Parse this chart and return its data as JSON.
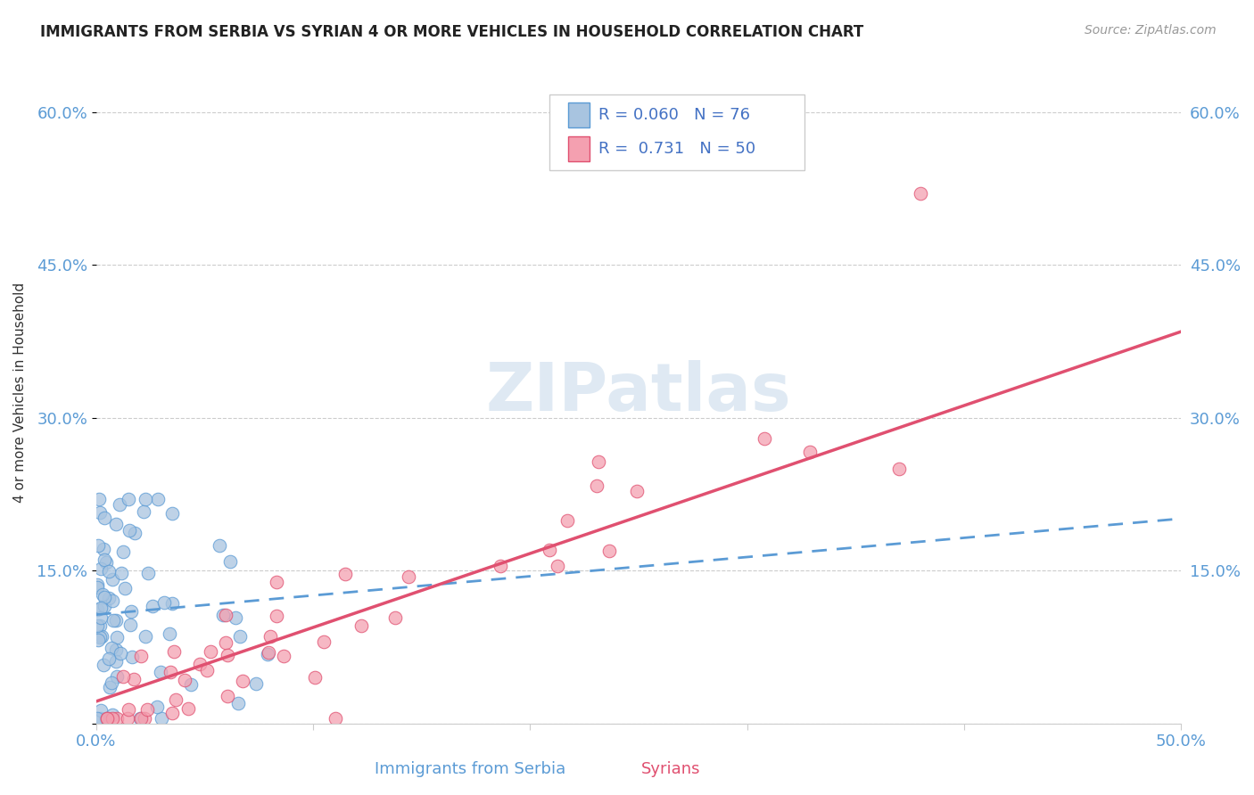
{
  "title": "IMMIGRANTS FROM SERBIA VS SYRIAN 4 OR MORE VEHICLES IN HOUSEHOLD CORRELATION CHART",
  "source": "Source: ZipAtlas.com",
  "ylabel": "4 or more Vehicles in Household",
  "xlabel_serbia": "Immigrants from Serbia",
  "xlabel_syrians": "Syrians",
  "watermark": "ZIPatlas",
  "legend_serbia_R": "R = 0.060",
  "legend_serbia_N": "N = 76",
  "legend_syrian_R": "R =  0.731",
  "legend_syrian_N": "N = 50",
  "xlim": [
    0.0,
    0.5
  ],
  "ylim": [
    0.0,
    0.65
  ],
  "serbia_color": "#a8c4e0",
  "syrian_color": "#f4a0b0",
  "serbia_line_color": "#5b9bd5",
  "syrian_line_color": "#e05070"
}
